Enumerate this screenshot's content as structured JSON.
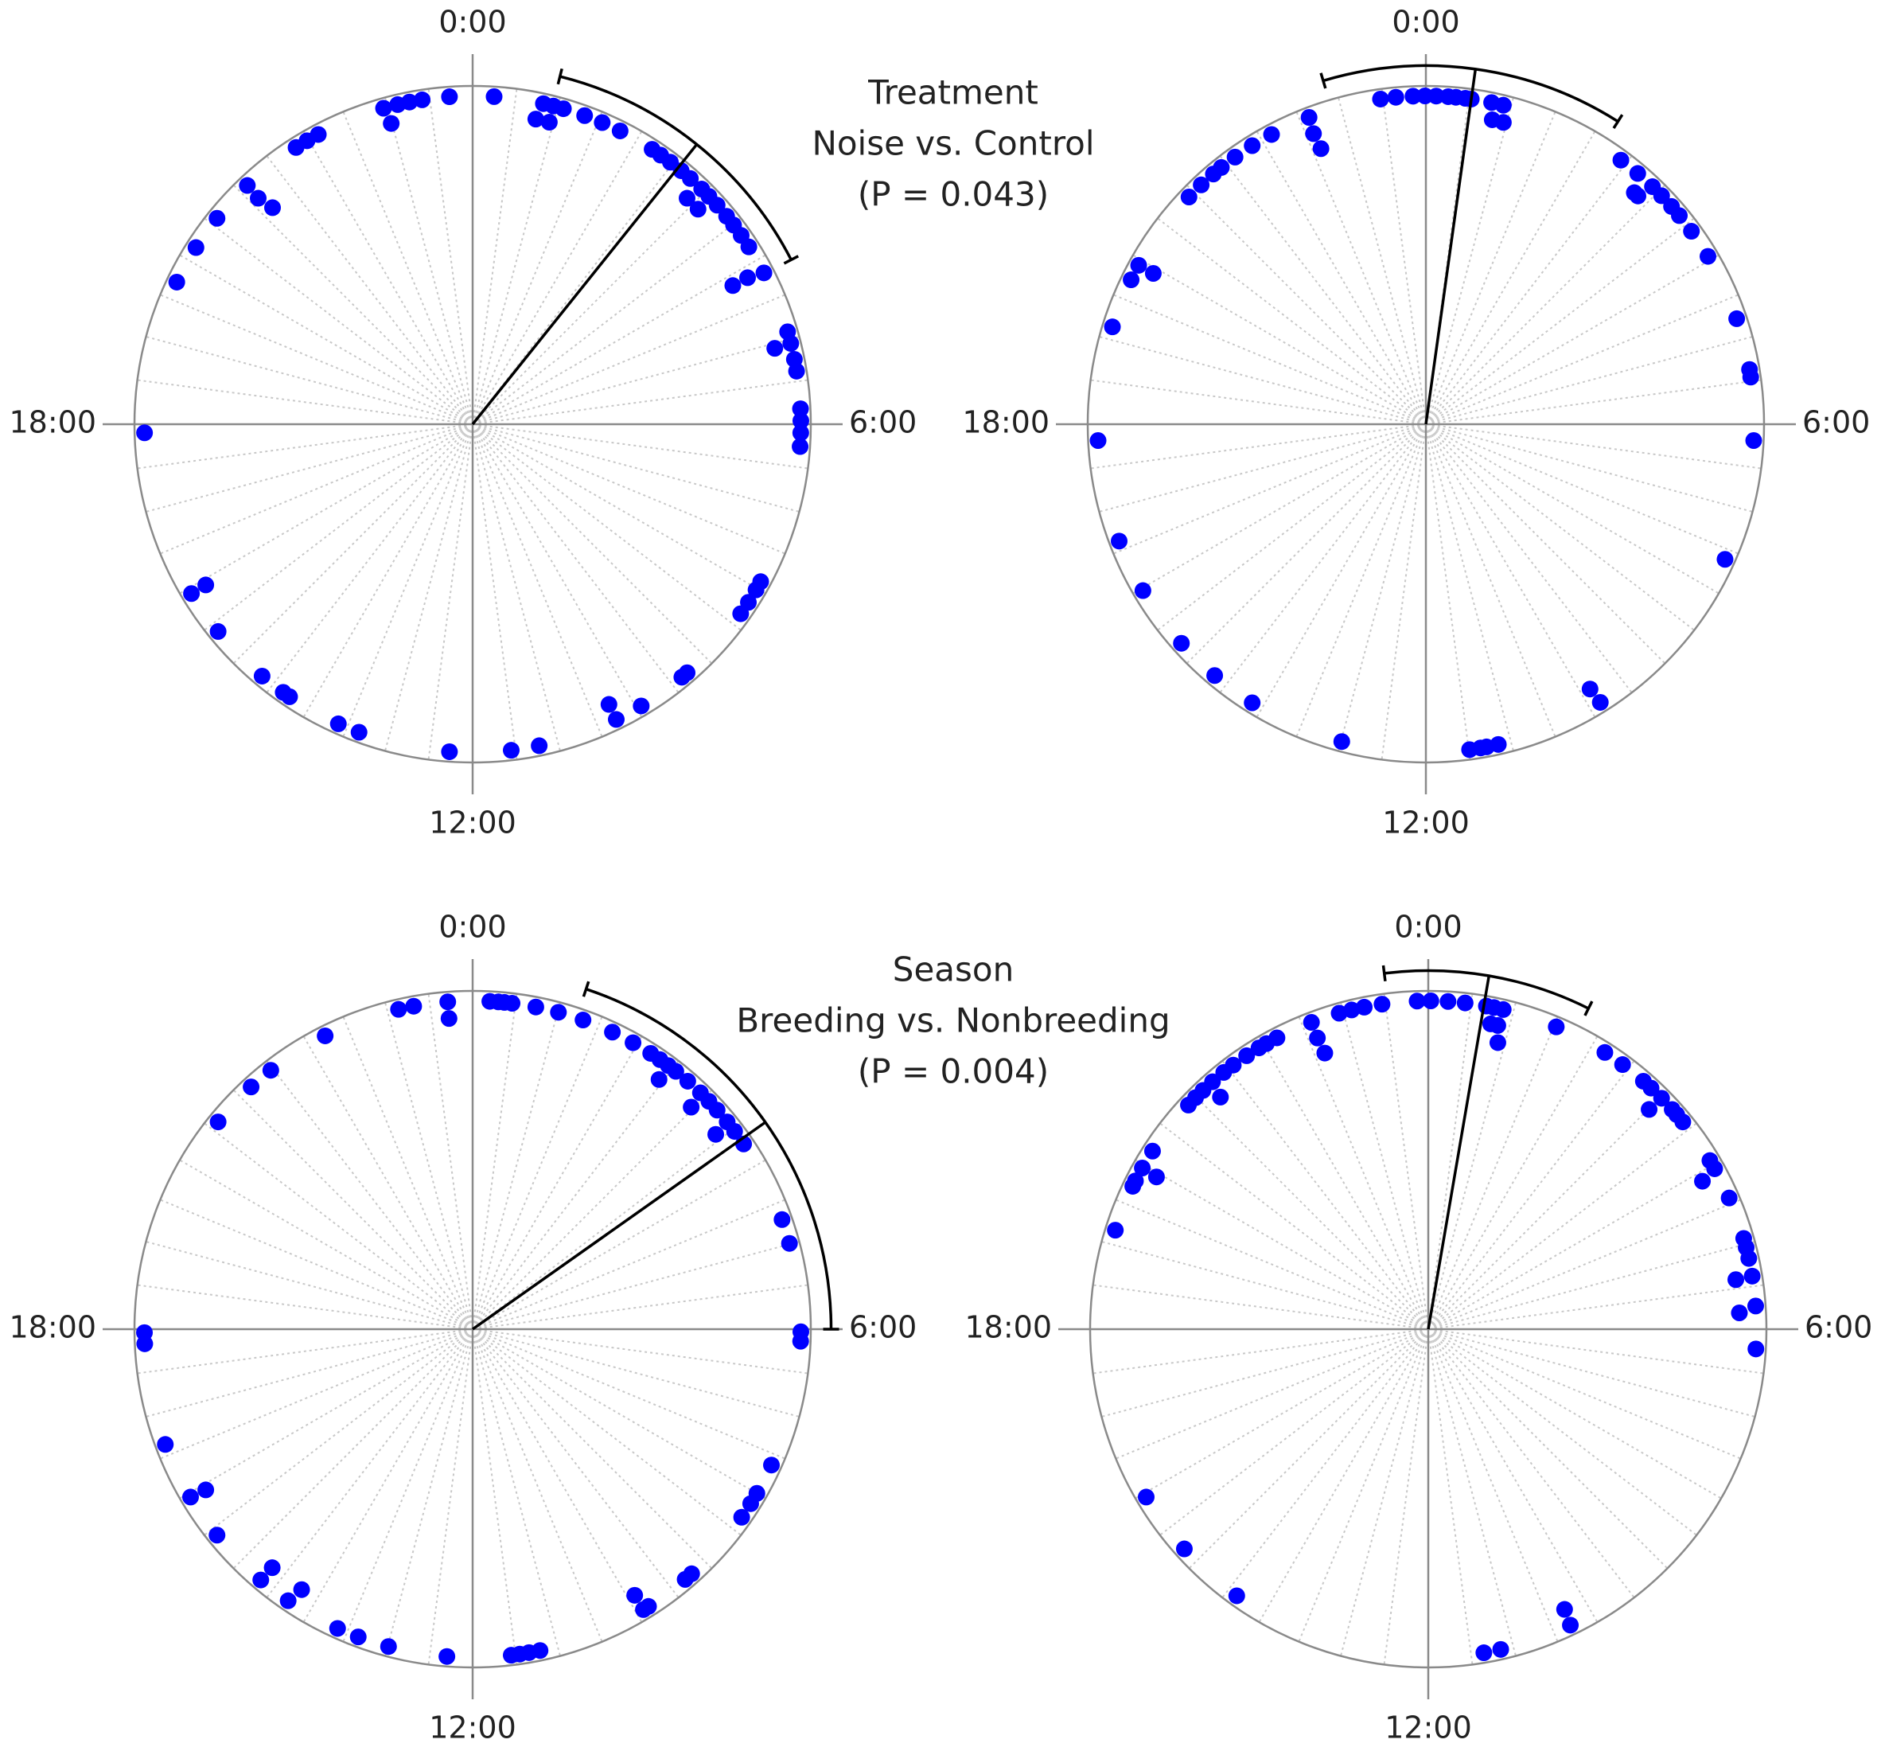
{
  "chart_data": [
    {
      "type": "circular-scatter",
      "color": "#0000ff",
      "xlim": [
        0,
        24
      ],
      "xticks": [
        {
          "value": 0,
          "label": "0:00"
        },
        {
          "value": 6,
          "label": "6:00"
        },
        {
          "value": 12,
          "label": "12:00"
        },
        {
          "value": 18,
          "label": "18:00"
        }
      ],
      "annotations": [
        "Treatment",
        "Noise vs. Control",
        "(P = 0.043)"
      ],
      "mean": 2.58,
      "ci": [
        0.94,
        4.18
      ],
      "values": [
        23.73,
        0.25,
        22.95,
        22.99,
        23.12,
        23.26,
        23.41,
        0.83,
        0.95,
        1.07,
        0.78,
        0.95,
        1.33,
        1.55,
        1.78,
        2.21,
        2.33,
        2.47,
        2.63,
        2.77,
        2.95,
        3.07,
        3.21,
        3.38,
        3.51,
        3.66,
        3.82,
        2.9,
        3.09,
        4.17,
        4.13,
        4.13,
        4.91,
        5.05,
        5.24,
        5.38,
        5.82,
        5.96,
        6.1,
        6.26,
        5.06,
        17.9,
        19.71,
        20.17,
        20.59,
        21.11,
        21.1,
        21.15,
        21.83,
        21.98,
        22.13,
        15.93,
        15.93,
        15.39,
        14.66,
        14.35,
        14.26,
        13.61,
        13.35,
        12.27,
        11.55,
        11.22,
        10.27,
        10.27,
        9.94,
        9.36,
        9.28,
        8.35,
        8.19,
        8.02,
        7.91
      ]
    },
    {
      "type": "circular-scatter",
      "color": "#0000ff",
      "xlim": [
        0,
        24
      ],
      "xticks": [
        {
          "value": 0,
          "label": "0:00"
        },
        {
          "value": 6,
          "label": "6:00"
        },
        {
          "value": 12,
          "label": "12:00"
        },
        {
          "value": 18,
          "label": "18:00"
        }
      ],
      "mean": 0.53,
      "ci": [
        22.89,
        2.16
      ],
      "values": [
        23.47,
        23.65,
        23.85,
        23.99,
        0.12,
        0.26,
        0.35,
        0.46,
        0.53,
        0.77,
        0.91,
        0.82,
        0.96,
        22.61,
        22.59,
        22.61,
        22.13,
        21.87,
        21.63,
        21.43,
        21.31,
        21.12,
        20.92,
        19.93,
        19.74,
        19.93,
        19.15,
        17.81,
        16.61,
        15.97,
        15.21,
        14.67,
        14.13,
        12.99,
        11.49,
        11.36,
        11.29,
        11.15,
        9.86,
        9.88,
        7.62,
        6.19,
        5.45,
        5.36,
        4.75,
        3.95,
        3.6,
        3.37,
        3.23,
        3.06,
        2.91,
        2.86,
        2.8,
        2.68,
        2.43
      ]
    },
    {
      "type": "circular-scatter",
      "color": "#0000ff",
      "xlim": [
        0,
        24
      ],
      "xticks": [
        {
          "value": 0,
          "label": "0:00"
        },
        {
          "value": 6,
          "label": "6:00"
        },
        {
          "value": 12,
          "label": "12:00"
        },
        {
          "value": 18,
          "label": "18:00"
        }
      ],
      "annotations": [
        "Season",
        "Breeding vs. Nonbreeding",
        "(P = 0.004)"
      ],
      "mean": 3.65,
      "ci": [
        1.23,
        6.0
      ],
      "values": [
        23.71,
        23.71,
        23.31,
        23.13,
        0.2,
        0.3,
        0.37,
        0.46,
        0.74,
        1.01,
        1.31,
        1.68,
        1.95,
        2.19,
        2.32,
        2.44,
        2.55,
        2.73,
        2.93,
        3.07,
        3.21,
        3.39,
        3.53,
        3.71,
        2.45,
        2.97,
        3.42,
        22.22,
        21.47,
        21.17,
        20.61,
        17.96,
        17.83,
        16.63,
        15.95,
        15.93,
        15.41,
        14.68,
        14.67,
        14.28,
        14.22,
        13.62,
        13.36,
        12.99,
        12.3,
        11.55,
        11.45,
        11.34,
        11.21,
        9.91,
        9.91,
        9.84,
        9.31,
        9.21,
        8.33,
        8.14,
        8.0,
        7.63,
        4.7,
        4.99,
        6.03,
        6.14
      ]
    },
    {
      "type": "circular-scatter",
      "color": "#0000ff",
      "xlim": [
        0,
        24
      ],
      "xticks": [
        {
          "value": 0,
          "label": "0:00"
        },
        {
          "value": 6,
          "label": "6:00"
        },
        {
          "value": 12,
          "label": "12:00"
        },
        {
          "value": 18,
          "label": "18:00"
        }
      ],
      "mean": 0.65,
      "ci": [
        23.53,
        1.77
      ],
      "values": [
        23.87,
        0.03,
        0.23,
        0.43,
        0.68,
        0.88,
        0.77,
        0.86,
        0.91,
        0.77,
        1.53,
        2.17,
        2.42,
        2.73,
        2.85,
        3.02,
        3.2,
        3.39,
        3.01,
        3.28,
        3.94,
        4.05,
        4.11,
        4.43,
        4.93,
        5.04,
        5.17,
        5.38,
        5.39,
        5.73,
        5.8,
        6.23,
        23.46,
        23.25,
        23.1,
        22.95,
        22.61,
        22.61,
        22.63,
        22.17,
        22.03,
        21.93,
        21.76,
        21.57,
        21.43,
        21.26,
        21.11,
        20.99,
        20.87,
        21.21,
        20.19,
        19.96,
        19.95,
        19.79,
        19.72,
        19.17,
        15.95,
        15.2,
        14.38,
        10.29,
        10.27,
        11.35,
        11.15
      ]
    }
  ]
}
